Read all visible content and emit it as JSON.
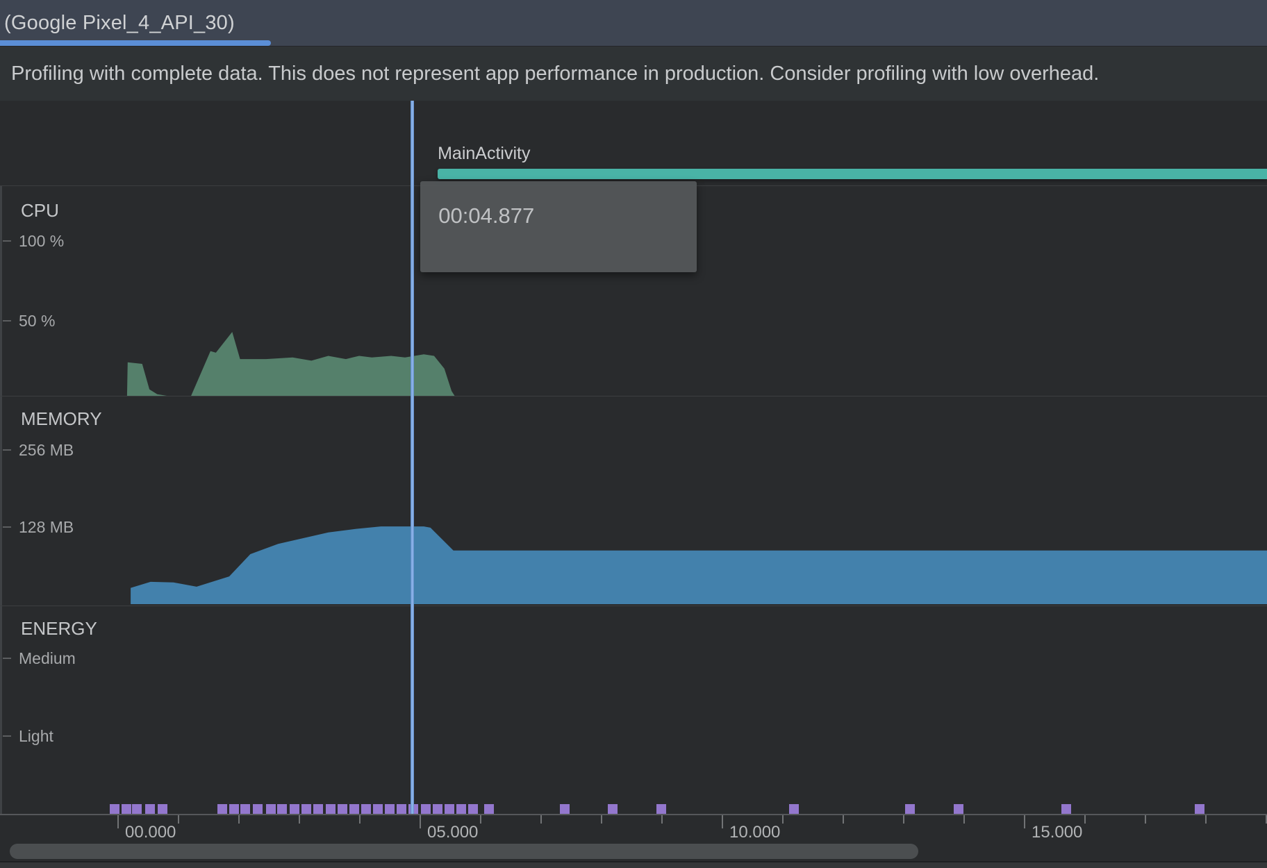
{
  "tab": {
    "label": "(Google Pixel_4_API_30)"
  },
  "banner": {
    "message": "Profiling with complete data. This does not represent app performance in production. Consider profiling with low overhead."
  },
  "timeline": {
    "activity_label": "MainActivity",
    "activity_start_s": 5.3,
    "cursor_time_s": 4.877,
    "tooltip_time": "00:04.877"
  },
  "sections": {
    "cpu": {
      "title": "CPU",
      "axis_ticks": [
        "100 %",
        "50 %"
      ]
    },
    "memory": {
      "title": "MEMORY",
      "axis_ticks": [
        "256 MB",
        "128 MB"
      ]
    },
    "energy": {
      "title": "ENERGY",
      "axis_ticks": [
        "Medium",
        "Light"
      ]
    }
  },
  "time_axis": {
    "major_labels": [
      {
        "text": "00.000",
        "t": 0
      },
      {
        "text": "05.000",
        "t": 5
      },
      {
        "text": "10.000",
        "t": 10
      },
      {
        "text": "15.000",
        "t": 15
      }
    ],
    "minor_every_s": 1,
    "visible_range_s": [
      -0.5,
      19.1
    ]
  },
  "colors": {
    "cpu_area": "#55806b",
    "memory_area": "#4381ac",
    "activity_bar": "#49b3a6",
    "energy_event": "#9377cd",
    "tab_underline": "#5b8ed6"
  },
  "chart_data": [
    {
      "type": "area",
      "name": "cpu",
      "title": "CPU",
      "ylabel": "%",
      "ylim": [
        0,
        100
      ],
      "yticks": [
        50,
        100
      ],
      "x_unit": "seconds",
      "points": [
        [
          0.16,
          0
        ],
        [
          0.17,
          21
        ],
        [
          0.41,
          20
        ],
        [
          0.53,
          4
        ],
        [
          0.66,
          1
        ],
        [
          0.82,
          0
        ],
        [
          1.22,
          0
        ],
        [
          1.54,
          28
        ],
        [
          1.63,
          27
        ],
        [
          1.9,
          40
        ],
        [
          2.03,
          23
        ],
        [
          2.46,
          23
        ],
        [
          2.9,
          24
        ],
        [
          3.21,
          22
        ],
        [
          3.49,
          25
        ],
        [
          3.78,
          23
        ],
        [
          4.0,
          25
        ],
        [
          4.21,
          24
        ],
        [
          4.53,
          25
        ],
        [
          4.76,
          24
        ],
        [
          5.07,
          26
        ],
        [
          5.24,
          25
        ],
        [
          5.41,
          17
        ],
        [
          5.53,
          3
        ],
        [
          5.58,
          0
        ]
      ]
    },
    {
      "type": "area",
      "name": "memory",
      "title": "MEMORY",
      "ylabel": "MB",
      "ylim": [
        0,
        256
      ],
      "yticks": [
        128,
        256
      ],
      "x_unit": "seconds",
      "points": [
        [
          0.22,
          0
        ],
        [
          0.22,
          27
        ],
        [
          0.55,
          37
        ],
        [
          0.93,
          36
        ],
        [
          1.31,
          29
        ],
        [
          1.85,
          46
        ],
        [
          2.2,
          83
        ],
        [
          2.66,
          100
        ],
        [
          3.49,
          119
        ],
        [
          3.95,
          125
        ],
        [
          4.36,
          129
        ],
        [
          5.07,
          129
        ],
        [
          5.18,
          127
        ],
        [
          5.56,
          89
        ],
        [
          19.1,
          89
        ]
      ]
    },
    {
      "type": "scatter",
      "name": "energy_system_events",
      "ylabel": "",
      "x_unit": "seconds",
      "x": [
        -0.05,
        0.15,
        0.32,
        0.54,
        0.75,
        1.74,
        1.93,
        2.11,
        2.32,
        2.54,
        2.72,
        2.93,
        3.13,
        3.32,
        3.53,
        3.72,
        3.92,
        4.11,
        4.31,
        4.51,
        4.7,
        4.9,
        5.1,
        5.3,
        5.49,
        5.69,
        5.89,
        6.15,
        7.4,
        8.2,
        9.0,
        11.2,
        13.11,
        13.92,
        15.7,
        17.91
      ]
    }
  ]
}
